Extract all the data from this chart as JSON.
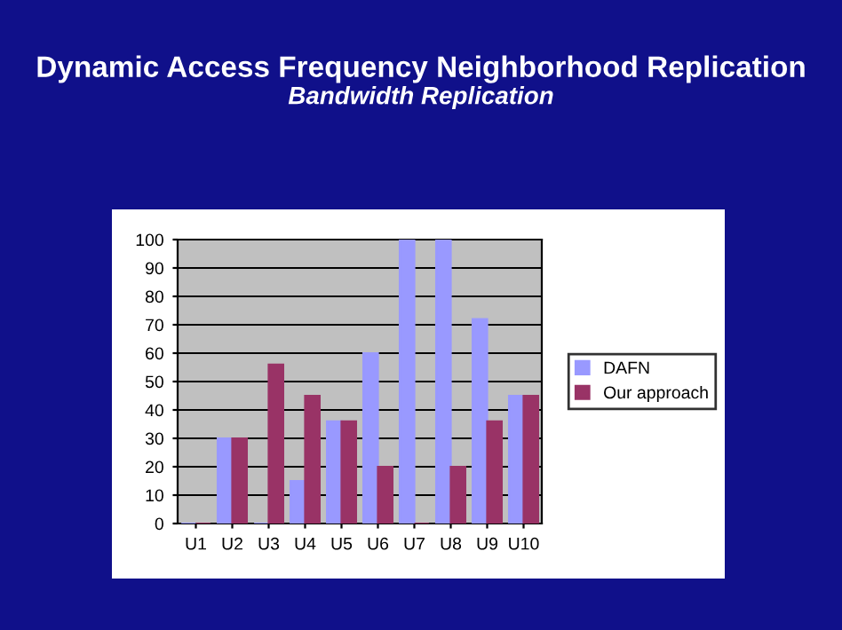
{
  "chart_data": {
    "type": "bar",
    "title": "Dynamic Access Frequency Neighborhood Replication",
    "subtitle": "Bandwidth Replication",
    "categories": [
      "U1",
      "U2",
      "U3",
      "U4",
      "U5",
      "U6",
      "U7",
      "U8",
      "U9",
      "U10"
    ],
    "series": [
      {
        "name": "DAFN",
        "color": "#9999ff",
        "values": [
          0,
          30,
          0,
          15,
          36,
          60,
          100,
          100,
          72,
          45
        ]
      },
      {
        "name": "Our approach",
        "color": "#993366",
        "values": [
          0,
          30,
          56,
          45,
          36,
          20,
          0,
          20,
          36,
          45
        ]
      }
    ],
    "ylim": [
      0,
      100
    ],
    "yticks": [
      0,
      10,
      20,
      30,
      40,
      50,
      60,
      70,
      80,
      90,
      100
    ],
    "grid": "y",
    "legend": "right"
  }
}
